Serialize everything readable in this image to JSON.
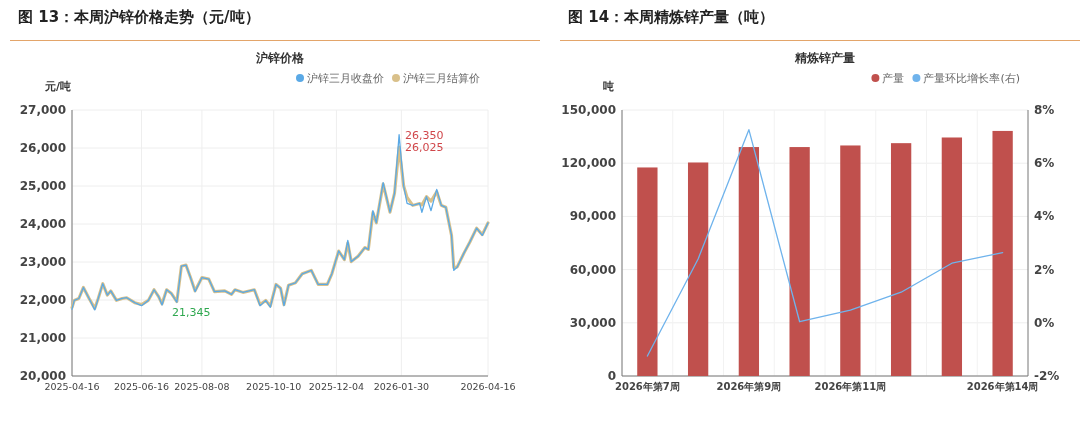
{
  "chart_data": [
    {
      "type": "line",
      "title": "图 13：本周沪锌价格走势（元/吨）",
      "subtitle": "沪锌价格",
      "ylabel": "元/吨",
      "x": [
        "2025-04-16",
        "2025-04-18",
        "2025-04-22",
        "2025-04-26",
        "2025-05-01",
        "2025-05-06",
        "2025-05-09",
        "2025-05-13",
        "2025-05-17",
        "2025-05-20",
        "2025-05-25",
        "2025-05-30",
        "2025-06-03",
        "2025-06-10",
        "2025-06-16",
        "2025-06-22",
        "2025-06-27",
        "2025-07-01",
        "2025-07-04",
        "2025-07-08",
        "2025-07-12",
        "2025-07-17",
        "2025-07-21",
        "2025-07-25",
        "2025-07-29",
        "2025-08-02",
        "2025-08-08",
        "2025-08-14",
        "2025-08-19",
        "2025-08-28",
        "2025-09-03",
        "2025-09-06",
        "2025-09-13",
        "2025-09-23",
        "2025-09-28",
        "2025-10-03",
        "2025-10-07",
        "2025-10-12",
        "2025-10-16",
        "2025-10-19",
        "2025-10-23",
        "2025-10-29",
        "2025-11-04",
        "2025-11-12",
        "2025-11-18",
        "2025-11-26",
        "2025-11-30",
        "2025-12-06",
        "2025-12-11",
        "2025-12-14",
        "2025-12-17",
        "2025-12-23",
        "2025-12-29",
        "2026-01-01",
        "2026-01-05",
        "2026-01-08",
        "2026-01-14",
        "2026-01-20",
        "2026-01-24",
        "2026-01-28",
        "2026-02-01",
        "2026-02-04",
        "2026-02-09",
        "2026-02-15",
        "2026-02-17",
        "2026-02-21",
        "2026-02-25",
        "2026-03-02",
        "2026-03-06",
        "2026-03-10",
        "2026-03-15",
        "2026-03-17",
        "2026-03-20",
        "2026-03-26",
        "2026-03-31",
        "2026-04-06",
        "2026-04-11",
        "2026-04-16"
      ],
      "series": [
        {
          "name": "沪锌三月收盘价",
          "color": "#5aa9e6",
          "values": [
            21760,
            21990,
            22040,
            22330,
            22040,
            21740,
            22040,
            22430,
            22130,
            22240,
            21990,
            22040,
            22060,
            21930,
            21850,
            21990,
            22270,
            22090,
            21870,
            22270,
            22180,
            21940,
            22890,
            22920,
            22590,
            22220,
            22590,
            22550,
            22220,
            22240,
            22150,
            22270,
            22200,
            22270,
            21850,
            21990,
            21810,
            22410,
            22310,
            21850,
            22390,
            22450,
            22690,
            22780,
            22410,
            22410,
            22690,
            23290,
            23060,
            23570,
            23010,
            23150,
            23380,
            23330,
            24350,
            24030,
            25090,
            24310,
            24810,
            26350,
            25000,
            24540,
            24490,
            24540,
            24310,
            24720,
            24350,
            24910,
            24490,
            24440,
            23700,
            22780,
            22870,
            23240,
            23520,
            23890,
            23700,
            24030
          ]
        },
        {
          "name": "沪锌三月结算价",
          "color": "#d9c08a",
          "values": [
            21800,
            21990,
            22040,
            22330,
            22040,
            21780,
            22040,
            22430,
            22130,
            22240,
            21990,
            22040,
            22060,
            21930,
            21880,
            21990,
            22270,
            22090,
            21900,
            22270,
            22180,
            21960,
            22890,
            22920,
            22590,
            22240,
            22590,
            22550,
            22220,
            22240,
            22150,
            22270,
            22200,
            22270,
            21880,
            21990,
            21840,
            22410,
            22310,
            21880,
            22390,
            22450,
            22690,
            22780,
            22410,
            22410,
            22690,
            23290,
            23060,
            23500,
            23010,
            23150,
            23380,
            23330,
            24300,
            24030,
            25050,
            24310,
            24810,
            26025,
            25000,
            24700,
            24490,
            24540,
            24500,
            24720,
            24600,
            24850,
            24490,
            24440,
            23700,
            22850,
            22870,
            23240,
            23520,
            23890,
            23720,
            24030
          ]
        }
      ],
      "xlim": [
        "2025-04-16",
        "2026-04-16"
      ],
      "xticks": [
        "2025-04-16",
        "2025-06-16",
        "2025-08-08",
        "2025-10-10",
        "2025-12-04",
        "2026-01-30",
        "2026-04-16"
      ],
      "ylim": [
        20000,
        27000
      ],
      "yticks": [
        {
          "value": 20000,
          "label": "20,000"
        },
        {
          "value": 21000,
          "label": "21,000"
        },
        {
          "value": 22000,
          "label": "22,000"
        },
        {
          "value": 23000,
          "label": "23,000"
        },
        {
          "value": 24000,
          "label": "24,000"
        },
        {
          "value": 25000,
          "label": "25,000"
        },
        {
          "value": 26000,
          "label": "26,000"
        },
        {
          "value": 27000,
          "label": "27,000"
        }
      ],
      "grid": true,
      "legend": "top right",
      "annotations": [
        {
          "text": "26,350",
          "x": "2026-01-28",
          "y": 26350
        },
        {
          "text": "26,025",
          "x": "2026-01-28",
          "y": 26025
        },
        "21,345"
      ]
    },
    {
      "type": "bar",
      "title": "图 14：本周精炼锌产量（吨）",
      "subtitle": "精炼锌产量",
      "ylabel": "吨",
      "categories": [
        "2026年第7周",
        null,
        "2026年第9周",
        null,
        "2026年第11周",
        null,
        null,
        "2026年第14周"
      ],
      "series": [
        {
          "name": "产量",
          "type": "bar",
          "color": "#c0504d",
          "values": [
            117600,
            120400,
            129100,
            129100,
            130000,
            131300,
            134500,
            138200
          ]
        },
        {
          "name": "产量环比增长率(右)",
          "type": "line",
          "axis": "y2",
          "color": "#6fb3ec",
          "values": [
            -1.25,
            2.4,
            7.26,
            0.04,
            0.48,
            1.15,
            2.24,
            2.64
          ]
        }
      ],
      "ylim": [
        0,
        150000
      ],
      "yticks": [
        {
          "value": 0,
          "label": "0"
        },
        {
          "value": 30000,
          "label": "30,000"
        },
        {
          "value": 60000,
          "label": "60,000"
        },
        {
          "value": 90000,
          "label": "90,000"
        },
        {
          "value": 120000,
          "label": "120,000"
        },
        {
          "value": 150000,
          "label": "150,000"
        }
      ],
      "y2lim": [
        -2,
        8
      ],
      "y2ticks": [
        {
          "value": -2,
          "label": "-2%"
        },
        {
          "value": 0,
          "label": "0%"
        },
        {
          "value": 2,
          "label": "2%"
        },
        {
          "value": 4,
          "label": "4%"
        },
        {
          "value": 6,
          "label": "6%"
        },
        {
          "value": 8,
          "label": "8%"
        }
      ],
      "grid": true,
      "legend": "top right"
    }
  ]
}
